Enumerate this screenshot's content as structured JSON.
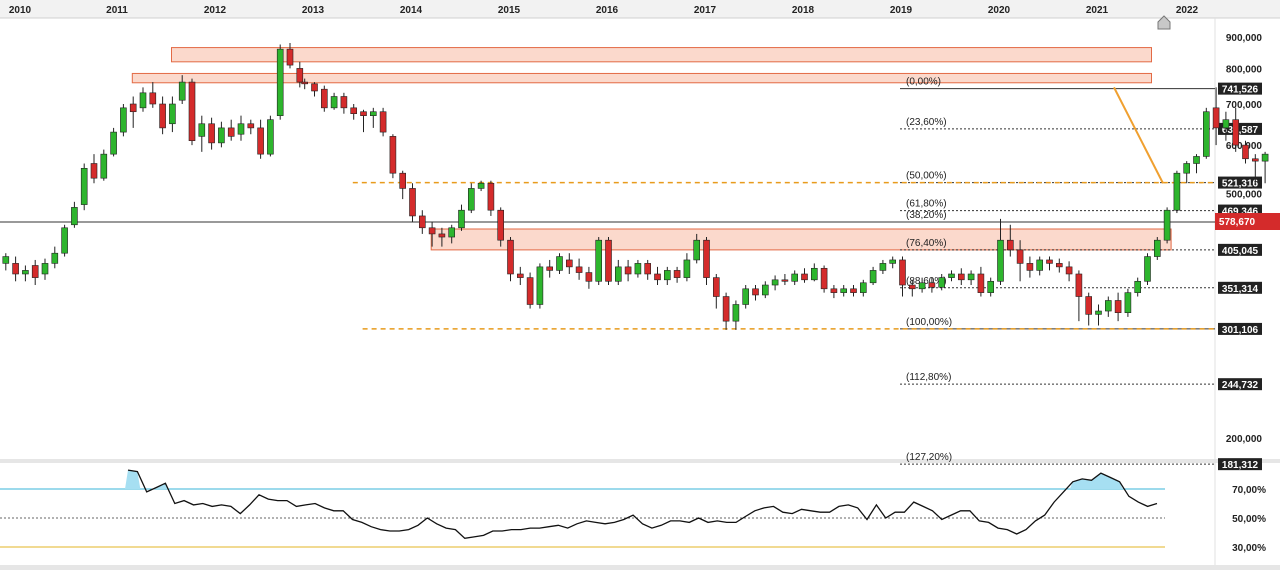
{
  "chart_data": [
    {
      "type": "candlestick",
      "years": [
        "2010",
        "2011",
        "2012",
        "2013",
        "2014",
        "2015",
        "2016",
        "2017",
        "2018",
        "2019",
        "2020",
        "2021",
        "2022"
      ],
      "price_ticks": [
        {
          "label": "900,000",
          "value": 900000
        },
        {
          "label": "800,000",
          "value": 800000
        },
        {
          "label": "700,000",
          "value": 700000
        },
        {
          "label": "600,000",
          "value": 600000
        },
        {
          "label": "500,000",
          "value": 500000
        },
        {
          "label": "200,000",
          "value": 200000
        }
      ],
      "scale": "log",
      "current_price": "578,670",
      "fibonacci": [
        {
          "pct": "(0,00%)",
          "price": "741,526",
          "value": 741526,
          "solid": true
        },
        {
          "pct": "(23,60%)",
          "price": "637,587",
          "value": 637587
        },
        {
          "pct": "(38,20%)",
          "price": "",
          "value": 580000
        },
        {
          "pct": "(50,00%)",
          "price": "521,316",
          "value": 521316
        },
        {
          "pct": "(61,80%)",
          "price": "469,346",
          "value": 469346
        },
        {
          "pct": "(76,40%)",
          "price": "405,045",
          "value": 405045
        },
        {
          "pct": "(88,60%)",
          "price": "351,314",
          "value": 351314
        },
        {
          "pct": "(100,00%)",
          "price": "301,106",
          "value": 301106,
          "solid": true
        },
        {
          "pct": "(112,80%)",
          "price": "244,732",
          "value": 244732
        },
        {
          "pct": "(127,20%)",
          "price": "181,312",
          "value": 181312
        }
      ],
      "supply_zones": [
        {
          "low": 820000,
          "high": 865000,
          "from": 2011.75,
          "to": 2021.75
        },
        {
          "low": 758000,
          "high": 785000,
          "from": 2011.35,
          "to": 2021.75
        },
        {
          "low": 405000,
          "high": 438000,
          "from": 2014.4,
          "to": 2021.95
        }
      ],
      "support_lines": [
        {
          "value": 521316,
          "from": 2013.6
        },
        {
          "value": 301106,
          "from": 2013.7
        }
      ],
      "trend_line": {
        "from": [
          2021.18,
          745000
        ],
        "to": [
          2021.68,
          520000
        ]
      },
      "candles": [
        [
          2010.0,
          420000,
          398000,
          430000,
          390000
        ],
        [
          2010.1,
          385000,
          395000,
          400000,
          375000
        ],
        [
          2010.2,
          385000,
          370000,
          395000,
          360000
        ],
        [
          2010.3,
          370000,
          375000,
          382000,
          360000
        ],
        [
          2010.4,
          382000,
          365000,
          390000,
          355000
        ],
        [
          2010.5,
          370000,
          385000,
          392000,
          362000
        ],
        [
          2010.6,
          385000,
          400000,
          410000,
          378000
        ],
        [
          2010.7,
          400000,
          440000,
          445000,
          395000
        ],
        [
          2010.8,
          445000,
          475000,
          485000,
          440000
        ],
        [
          2010.9,
          480000,
          550000,
          560000,
          470000
        ],
        [
          2011.0,
          560000,
          530000,
          580000,
          520000
        ],
        [
          2011.1,
          530000,
          580000,
          590000,
          525000
        ],
        [
          2011.2,
          580000,
          630000,
          640000,
          575000
        ],
        [
          2011.3,
          630000,
          690000,
          700000,
          620000
        ],
        [
          2011.4,
          700000,
          680000,
          720000,
          640000
        ],
        [
          2011.5,
          690000,
          730000,
          745000,
          680000
        ],
        [
          2011.6,
          730000,
          700000,
          760000,
          690000
        ],
        [
          2011.7,
          700000,
          640000,
          720000,
          625000
        ],
        [
          2011.8,
          650000,
          700000,
          720000,
          630000
        ],
        [
          2011.9,
          710000,
          760000,
          780000,
          700000
        ],
        [
          2012.0,
          760000,
          610000,
          770000,
          600000
        ],
        [
          2012.1,
          620000,
          650000,
          670000,
          585000
        ],
        [
          2012.2,
          650000,
          605000,
          665000,
          590000
        ],
        [
          2012.3,
          605000,
          640000,
          655000,
          595000
        ],
        [
          2012.4,
          640000,
          620000,
          660000,
          610000
        ],
        [
          2012.5,
          625000,
          650000,
          670000,
          610000
        ],
        [
          2012.6,
          650000,
          640000,
          660000,
          625000
        ],
        [
          2012.7,
          640000,
          580000,
          660000,
          570000
        ],
        [
          2012.8,
          580000,
          660000,
          670000,
          575000
        ],
        [
          2012.9,
          670000,
          860000,
          875000,
          660000
        ],
        [
          2013.0,
          860000,
          810000,
          880000,
          800000
        ],
        [
          2013.1,
          800000,
          760000,
          820000,
          745000
        ],
        [
          2013.15,
          760000,
          755000,
          770000,
          740000
        ],
        [
          2013.25,
          755000,
          735000,
          760000,
          720000
        ],
        [
          2013.35,
          740000,
          690000,
          750000,
          680000
        ],
        [
          2013.45,
          690000,
          720000,
          730000,
          685000
        ],
        [
          2013.55,
          720000,
          690000,
          730000,
          675000
        ],
        [
          2013.65,
          690000,
          675000,
          700000,
          660000
        ],
        [
          2013.75,
          680000,
          670000,
          685000,
          630000
        ],
        [
          2013.85,
          670000,
          680000,
          690000,
          640000
        ],
        [
          2013.95,
          680000,
          630000,
          690000,
          620000
        ],
        [
          2014.05,
          620000,
          540000,
          625000,
          530000
        ],
        [
          2014.15,
          540000,
          510000,
          545000,
          490000
        ],
        [
          2014.25,
          510000,
          460000,
          520000,
          450000
        ],
        [
          2014.35,
          460000,
          440000,
          470000,
          430000
        ],
        [
          2014.45,
          440000,
          430000,
          450000,
          410000
        ],
        [
          2014.55,
          430000,
          425000,
          440000,
          410000
        ],
        [
          2014.65,
          425000,
          440000,
          445000,
          415000
        ],
        [
          2014.75,
          440000,
          470000,
          480000,
          435000
        ],
        [
          2014.85,
          470000,
          510000,
          520000,
          465000
        ],
        [
          2014.95,
          510000,
          520000,
          525000,
          505000
        ],
        [
          2015.05,
          520000,
          470000,
          525000,
          460000
        ],
        [
          2015.15,
          470000,
          420000,
          475000,
          410000
        ],
        [
          2015.25,
          420000,
          370000,
          425000,
          360000
        ],
        [
          2015.35,
          370000,
          365000,
          380000,
          355000
        ],
        [
          2015.45,
          365000,
          330000,
          372000,
          325000
        ],
        [
          2015.55,
          330000,
          380000,
          385000,
          325000
        ],
        [
          2015.65,
          380000,
          375000,
          390000,
          365000
        ],
        [
          2015.75,
          375000,
          395000,
          400000,
          370000
        ],
        [
          2015.85,
          390000,
          380000,
          400000,
          370000
        ],
        [
          2015.95,
          380000,
          372000,
          392000,
          362000
        ],
        [
          2016.05,
          372000,
          360000,
          380000,
          350000
        ],
        [
          2016.15,
          360000,
          420000,
          425000,
          355000
        ],
        [
          2016.25,
          420000,
          360000,
          425000,
          355000
        ],
        [
          2016.35,
          360000,
          380000,
          390000,
          355000
        ],
        [
          2016.45,
          380000,
          370000,
          390000,
          360000
        ],
        [
          2016.55,
          370000,
          385000,
          390000,
          365000
        ],
        [
          2016.65,
          385000,
          370000,
          390000,
          362000
        ],
        [
          2016.75,
          370000,
          362000,
          380000,
          355000
        ],
        [
          2016.85,
          362000,
          375000,
          380000,
          355000
        ],
        [
          2016.95,
          375000,
          365000,
          380000,
          358000
        ],
        [
          2017.05,
          365000,
          390000,
          400000,
          360000
        ],
        [
          2017.15,
          390000,
          420000,
          430000,
          385000
        ],
        [
          2017.25,
          420000,
          365000,
          425000,
          355000
        ],
        [
          2017.35,
          365000,
          340000,
          370000,
          325000
        ],
        [
          2017.45,
          340000,
          310000,
          345000,
          300000
        ],
        [
          2017.55,
          310000,
          330000,
          335000,
          300000
        ],
        [
          2017.65,
          330000,
          350000,
          355000,
          325000
        ],
        [
          2017.75,
          350000,
          342000,
          355000,
          335000
        ],
        [
          2017.85,
          342000,
          355000,
          360000,
          338000
        ],
        [
          2017.95,
          355000,
          362000,
          368000,
          348000
        ],
        [
          2018.05,
          362000,
          360000,
          370000,
          355000
        ],
        [
          2018.15,
          360000,
          370000,
          375000,
          355000
        ],
        [
          2018.25,
          370000,
          362000,
          378000,
          358000
        ],
        [
          2018.35,
          362000,
          378000,
          385000,
          360000
        ],
        [
          2018.45,
          378000,
          350000,
          382000,
          345000
        ],
        [
          2018.55,
          350000,
          345000,
          355000,
          338000
        ],
        [
          2018.65,
          345000,
          350000,
          355000,
          340000
        ],
        [
          2018.75,
          350000,
          345000,
          355000,
          340000
        ],
        [
          2018.85,
          345000,
          358000,
          362000,
          340000
        ],
        [
          2018.95,
          358000,
          375000,
          380000,
          355000
        ],
        [
          2019.05,
          375000,
          385000,
          390000,
          370000
        ],
        [
          2019.15,
          385000,
          390000,
          395000,
          378000
        ],
        [
          2019.25,
          390000,
          355000,
          395000,
          340000
        ],
        [
          2019.35,
          355000,
          350000,
          362000,
          340000
        ],
        [
          2019.45,
          350000,
          358000,
          365000,
          345000
        ],
        [
          2019.55,
          358000,
          352000,
          365000,
          345000
        ],
        [
          2019.65,
          352000,
          365000,
          370000,
          348000
        ],
        [
          2019.75,
          365000,
          370000,
          375000,
          360000
        ],
        [
          2019.85,
          370000,
          362000,
          378000,
          355000
        ],
        [
          2019.95,
          362000,
          370000,
          375000,
          355000
        ],
        [
          2020.05,
          370000,
          345000,
          380000,
          340000
        ],
        [
          2020.15,
          345000,
          360000,
          365000,
          340000
        ],
        [
          2020.25,
          360000,
          420000,
          455000,
          355000
        ],
        [
          2020.35,
          420000,
          405000,
          445000,
          395000
        ],
        [
          2020.45,
          405000,
          385000,
          420000,
          360000
        ],
        [
          2020.55,
          385000,
          375000,
          395000,
          365000
        ],
        [
          2020.65,
          375000,
          390000,
          395000,
          368000
        ],
        [
          2020.75,
          390000,
          385000,
          395000,
          375000
        ],
        [
          2020.85,
          385000,
          380000,
          392000,
          372000
        ],
        [
          2020.95,
          380000,
          370000,
          388000,
          360000
        ],
        [
          2021.05,
          370000,
          340000,
          375000,
          310000
        ],
        [
          2021.15,
          340000,
          318000,
          345000,
          305000
        ],
        [
          2021.25,
          318000,
          322000,
          330000,
          305000
        ],
        [
          2021.35,
          322000,
          335000,
          340000,
          315000
        ],
        [
          2021.45,
          335000,
          320000,
          345000,
          310000
        ],
        [
          2021.55,
          320000,
          345000,
          350000,
          315000
        ],
        [
          2021.65,
          345000,
          360000,
          365000,
          340000
        ],
        [
          2021.75,
          360000,
          395000,
          400000,
          355000
        ],
        [
          2021.85,
          395000,
          420000,
          425000,
          390000
        ],
        [
          2021.95,
          420000,
          470000,
          475000,
          415000
        ],
        [
          2022.05,
          470000,
          540000,
          545000,
          465000
        ],
        [
          2022.15,
          540000,
          560000,
          565000,
          520000
        ],
        [
          2022.25,
          560000,
          575000,
          580000,
          540000
        ],
        [
          2022.35,
          575000,
          680000,
          690000,
          570000
        ],
        [
          2022.45,
          690000,
          640000,
          745000,
          600000
        ],
        [
          2022.55,
          640000,
          660000,
          680000,
          610000
        ],
        [
          2022.65,
          660000,
          600000,
          690000,
          585000
        ],
        [
          2022.75,
          600000,
          570000,
          610000,
          560000
        ],
        [
          2022.85,
          570000,
          565000,
          580000,
          520000
        ],
        [
          2022.95,
          565000,
          580000,
          585000,
          520000
        ]
      ],
      "rsi": {
        "ticks": [
          {
            "label": "70,00%",
            "value": 70
          },
          {
            "label": "50,00%",
            "value": 50
          },
          {
            "label": "30,00%",
            "value": 30
          }
        ],
        "overbought": 70,
        "oversold": 30,
        "values": [
          83,
          82,
          68,
          71,
          74,
          60,
          62,
          59,
          60,
          58,
          59,
          58,
          53,
          59,
          66,
          63,
          62,
          62,
          58,
          59,
          60,
          57,
          55,
          55,
          49,
          47,
          44,
          42,
          41,
          41,
          42,
          45,
          50,
          46,
          43,
          42,
          36,
          37,
          38,
          41,
          41,
          42,
          42,
          43,
          43,
          44,
          45,
          43,
          46,
          48,
          47,
          46,
          47,
          49,
          52,
          46,
          43,
          45,
          48,
          48,
          47,
          50,
          47,
          48,
          47,
          47,
          51,
          55,
          57,
          58,
          54,
          53,
          56,
          55,
          54,
          54,
          58,
          59,
          57,
          49,
          59,
          50,
          54,
          54,
          61,
          58,
          55,
          49,
          52,
          55,
          55,
          48,
          47,
          43,
          42,
          39,
          42,
          48,
          52,
          61,
          68,
          75,
          77,
          76,
          81,
          78,
          75,
          65,
          61,
          58,
          60
        ]
      }
    }
  ],
  "colors": {
    "bull": "#2db52d",
    "bear": "#d42b2b",
    "zone_fill": "#fbd9cc",
    "zone_stroke": "#e36a45",
    "support": "#e89b1c",
    "trend": "#f0a030",
    "price_tag": "#d42b2b",
    "rsi_upper": "#39b4d9",
    "rsi_lower": "#e3b424",
    "rsi_fill": "#a6dff2"
  },
  "icons": {
    "scroll": "home-arrow-icon"
  }
}
